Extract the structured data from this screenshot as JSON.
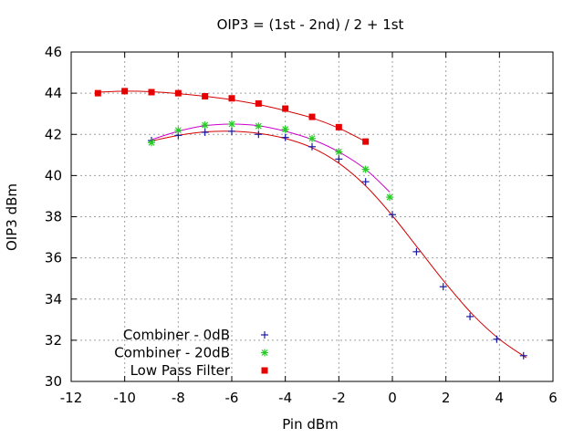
{
  "chart_data": {
    "type": "scatter",
    "title": "OIP3 = (1st - 2nd) / 2 + 1st",
    "xlabel": "Pin dBm",
    "ylabel": "OIP3 dBm",
    "xlim": [
      -12,
      6
    ],
    "ylim": [
      30,
      46
    ],
    "xticks": [
      -12,
      -10,
      -8,
      -6,
      -4,
      -2,
      0,
      2,
      4,
      6
    ],
    "yticks": [
      30,
      32,
      34,
      36,
      38,
      40,
      42,
      44,
      46
    ],
    "grid": true,
    "legend_position": "bottom-left",
    "series": [
      {
        "name": "Combiner - 0dB",
        "marker": "plus",
        "color": "#1a1aa6",
        "points": [
          [
            -9,
            41.7
          ],
          [
            -8,
            41.95
          ],
          [
            -7,
            42.1
          ],
          [
            -6,
            42.15
          ],
          [
            -5,
            42.0
          ],
          [
            -4,
            41.85
          ],
          [
            -3,
            41.4
          ],
          [
            -2,
            40.8
          ],
          [
            -1,
            39.7
          ],
          [
            0,
            38.1
          ],
          [
            0.9,
            36.3
          ],
          [
            1.9,
            34.6
          ],
          [
            2.9,
            33.15
          ],
          [
            3.9,
            32.05
          ],
          [
            4.9,
            31.25
          ]
        ],
        "fit": {
          "color": "#d40000",
          "points": [
            [
              -9.1,
              41.65
            ],
            [
              -8,
              41.95
            ],
            [
              -7,
              42.12
            ],
            [
              -6,
              42.15
            ],
            [
              -5,
              42.05
            ],
            [
              -4,
              41.8
            ],
            [
              -3,
              41.35
            ],
            [
              -2,
              40.6
            ],
            [
              -1,
              39.5
            ],
            [
              0,
              38.05
            ],
            [
              1,
              36.4
            ],
            [
              2,
              34.75
            ],
            [
              3,
              33.25
            ],
            [
              4,
              32.05
            ],
            [
              5,
              31.15
            ]
          ]
        }
      },
      {
        "name": "Combiner - 20dB",
        "marker": "star",
        "color": "#22cc22",
        "points": [
          [
            -9,
            41.6
          ],
          [
            -8,
            42.2
          ],
          [
            -7,
            42.45
          ],
          [
            -6,
            42.5
          ],
          [
            -5,
            42.4
          ],
          [
            -4,
            42.25
          ],
          [
            -3,
            41.8
          ],
          [
            -2,
            41.15
          ],
          [
            -1,
            40.3
          ],
          [
            -0.1,
            38.95
          ]
        ],
        "fit": {
          "color": "#cc00cc",
          "points": [
            [
              -9.1,
              41.7
            ],
            [
              -8,
              42.15
            ],
            [
              -7,
              42.42
            ],
            [
              -6,
              42.5
            ],
            [
              -5,
              42.42
            ],
            [
              -4,
              42.15
            ],
            [
              -3,
              41.75
            ],
            [
              -2,
              41.15
            ],
            [
              -1,
              40.3
            ],
            [
              -0.1,
              39.2
            ]
          ]
        }
      },
      {
        "name": "Low Pass Filter",
        "marker": "square",
        "color": "#e60000",
        "points": [
          [
            -11,
            44.0
          ],
          [
            -10,
            44.1
          ],
          [
            -9,
            44.05
          ],
          [
            -8,
            44.0
          ],
          [
            -7,
            43.85
          ],
          [
            -6,
            43.75
          ],
          [
            -5,
            43.5
          ],
          [
            -4,
            43.25
          ],
          [
            -3,
            42.85
          ],
          [
            -2,
            42.35
          ],
          [
            -1,
            41.65
          ]
        ],
        "fit": {
          "color": "#d40000",
          "points": [
            [
              -11,
              44.05
            ],
            [
              -10,
              44.1
            ],
            [
              -9,
              44.07
            ],
            [
              -8,
              43.98
            ],
            [
              -7,
              43.85
            ],
            [
              -6,
              43.68
            ],
            [
              -5,
              43.45
            ],
            [
              -4,
              43.15
            ],
            [
              -3,
              42.8
            ],
            [
              -2,
              42.3
            ],
            [
              -1,
              41.65
            ]
          ]
        }
      }
    ]
  }
}
